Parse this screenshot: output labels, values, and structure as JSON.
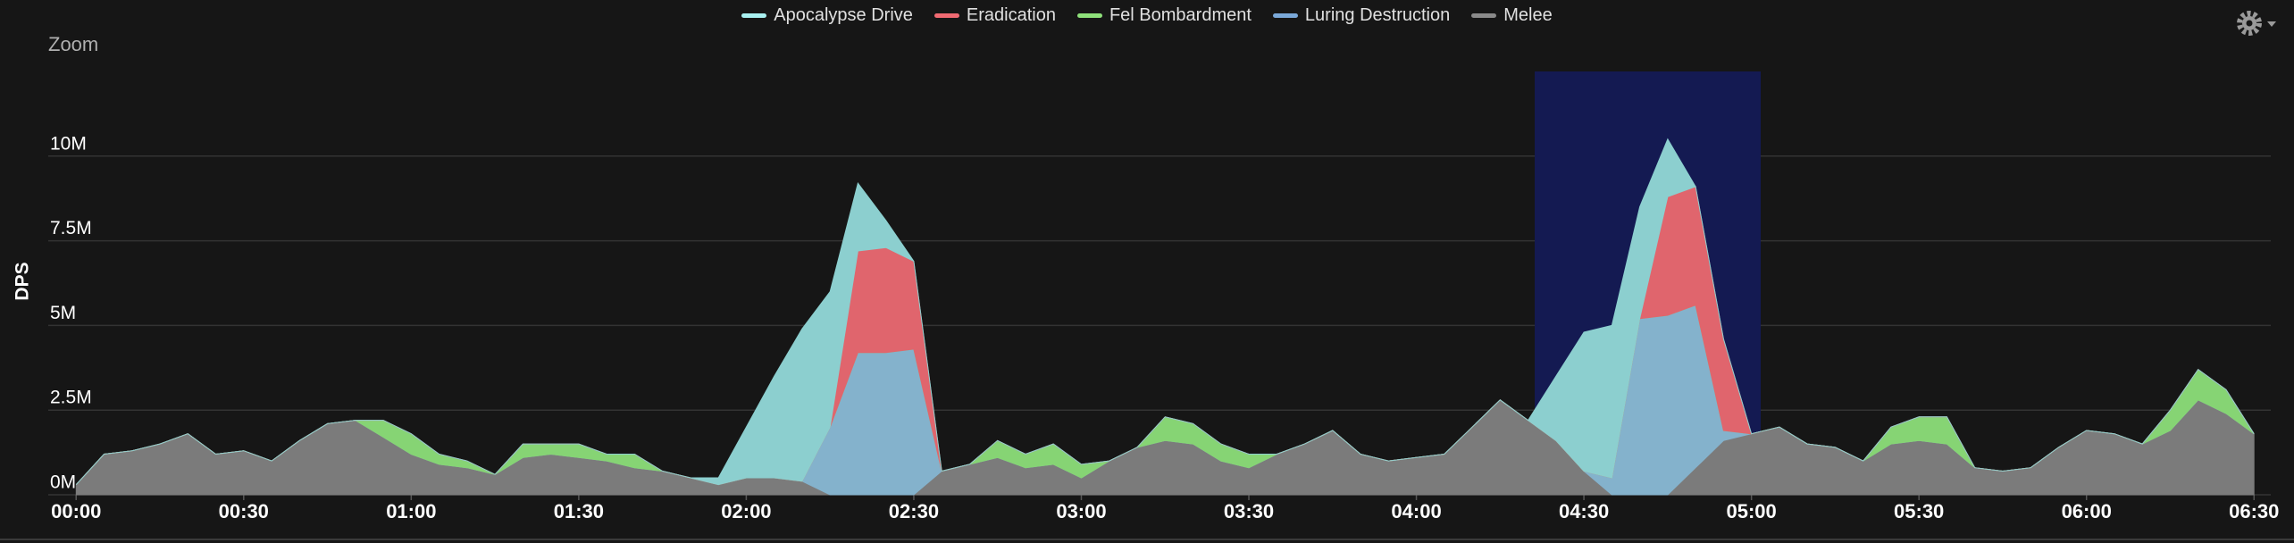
{
  "zoom_button": "Zoom",
  "chart_data": {
    "type": "area",
    "stacked": true,
    "y_label": "DPS",
    "grid": true,
    "x": [
      0,
      5,
      10,
      15,
      20,
      25,
      30,
      35,
      40,
      45,
      50,
      55,
      60,
      65,
      70,
      75,
      80,
      85,
      90,
      95,
      100,
      105,
      110,
      115,
      120,
      125,
      130,
      135,
      140,
      145,
      150,
      155,
      160,
      165,
      170,
      175,
      180,
      185,
      190,
      195,
      200,
      205,
      210,
      215,
      220,
      225,
      230,
      235,
      240,
      245,
      250,
      255,
      260,
      265,
      270,
      275,
      280,
      285,
      290,
      295,
      300,
      305,
      310,
      315,
      320,
      325,
      330,
      335,
      340,
      345,
      350,
      355,
      360,
      365,
      370,
      375,
      380,
      385,
      390
    ],
    "xlim": [
      -5,
      393
    ],
    "xticks": [
      {
        "value": 0,
        "label": "00:00"
      },
      {
        "value": 30,
        "label": "00:30"
      },
      {
        "value": 60,
        "label": "01:00"
      },
      {
        "value": 90,
        "label": "01:30"
      },
      {
        "value": 120,
        "label": "02:00"
      },
      {
        "value": 150,
        "label": "02:30"
      },
      {
        "value": 180,
        "label": "03:00"
      },
      {
        "value": 210,
        "label": "03:30"
      },
      {
        "value": 240,
        "label": "04:00"
      },
      {
        "value": 270,
        "label": "04:30"
      },
      {
        "value": 300,
        "label": "05:00"
      },
      {
        "value": 330,
        "label": "05:30"
      },
      {
        "value": 360,
        "label": "06:00"
      },
      {
        "value": 390,
        "label": "06:30"
      }
    ],
    "ylim": [
      0,
      12500000
    ],
    "yticks": [
      {
        "value": 0,
        "label": "0M"
      },
      {
        "value": 2500000,
        "label": "2.5M"
      },
      {
        "value": 5000000,
        "label": "5M"
      },
      {
        "value": 7500000,
        "label": "7.5M"
      },
      {
        "value": 10000000,
        "label": "10M"
      }
    ],
    "series": [
      {
        "name": "Apocalypse Drive",
        "color": "#8ccfcf",
        "line_color": "#a8f0f0",
        "values": [
          0,
          0,
          0,
          0,
          0,
          0,
          0,
          0,
          0,
          0,
          0,
          0,
          0,
          0,
          0,
          0,
          0,
          0,
          0,
          0,
          0,
          0,
          0,
          200000,
          1500000,
          3000000,
          4500000,
          4000000,
          2000000,
          800000,
          0,
          0,
          0,
          0,
          0,
          0,
          0,
          0,
          0,
          0,
          0,
          0,
          0,
          0,
          0,
          0,
          0,
          0,
          0,
          0,
          0,
          0,
          0,
          1900000,
          4100000,
          4500000,
          3300000,
          1700000,
          0,
          0,
          0,
          0,
          0,
          0,
          0,
          0,
          0,
          0,
          0,
          0,
          0,
          0,
          0,
          0,
          0,
          0,
          0,
          0,
          0
        ]
      },
      {
        "name": "Eradication",
        "color": "#e0656d",
        "line_color": "#f06a72",
        "values": [
          0,
          0,
          0,
          0,
          0,
          0,
          0,
          0,
          0,
          0,
          0,
          0,
          0,
          0,
          0,
          0,
          0,
          0,
          0,
          0,
          0,
          0,
          0,
          0,
          0,
          0,
          0,
          0,
          3000000,
          3100000,
          2600000,
          0,
          0,
          0,
          0,
          0,
          0,
          0,
          0,
          0,
          0,
          0,
          0,
          0,
          0,
          0,
          0,
          0,
          0,
          0,
          0,
          0,
          0,
          0,
          0,
          0,
          0,
          3500000,
          3500000,
          2700000,
          0,
          0,
          0,
          0,
          0,
          0,
          0,
          0,
          0,
          0,
          0,
          0,
          0,
          0,
          0,
          0,
          0,
          0,
          0
        ]
      },
      {
        "name": "Fel Bombardment",
        "color": "#86d474",
        "line_color": "#8ee07a",
        "values": [
          0,
          0,
          0,
          0,
          0,
          0,
          0,
          0,
          0,
          0,
          0,
          500000,
          600000,
          300000,
          200000,
          0,
          400000,
          300000,
          400000,
          200000,
          400000,
          0,
          0,
          0,
          0,
          0,
          0,
          0,
          0,
          0,
          0,
          0,
          0,
          500000,
          400000,
          600000,
          400000,
          0,
          0,
          700000,
          600000,
          500000,
          400000,
          0,
          0,
          0,
          0,
          0,
          0,
          0,
          0,
          0,
          0,
          0,
          0,
          0,
          0,
          0,
          0,
          0,
          0,
          0,
          0,
          0,
          0,
          500000,
          700000,
          800000,
          0,
          0,
          0,
          0,
          0,
          0,
          0,
          600000,
          900000,
          700000,
          0
        ]
      },
      {
        "name": "Luring Destruction",
        "color": "#84b2cc",
        "line_color": "#7aa8d8",
        "values": [
          0,
          0,
          0,
          0,
          0,
          0,
          0,
          0,
          0,
          0,
          0,
          0,
          0,
          0,
          0,
          0,
          0,
          0,
          0,
          0,
          0,
          0,
          0,
          0,
          0,
          0,
          0,
          2000000,
          4200000,
          4200000,
          4300000,
          0,
          0,
          0,
          0,
          0,
          0,
          0,
          0,
          0,
          0,
          0,
          0,
          0,
          0,
          0,
          0,
          0,
          0,
          0,
          0,
          0,
          0,
          0,
          0,
          500000,
          5200000,
          5300000,
          4800000,
          300000,
          0,
          0,
          0,
          0,
          0,
          0,
          0,
          0,
          0,
          0,
          0,
          0,
          0,
          0,
          0,
          0,
          0,
          0,
          0
        ]
      },
      {
        "name": "Melee",
        "color": "#7b7b7b",
        "line_color": "#8a8a8a",
        "values": [
          300000,
          1200000,
          1300000,
          1500000,
          1800000,
          1200000,
          1300000,
          1000000,
          1600000,
          2100000,
          2200000,
          1700000,
          1200000,
          900000,
          800000,
          600000,
          1100000,
          1200000,
          1100000,
          1000000,
          800000,
          700000,
          500000,
          300000,
          500000,
          500000,
          400000,
          0,
          0,
          0,
          0,
          700000,
          900000,
          1100000,
          800000,
          900000,
          500000,
          1000000,
          1400000,
          1600000,
          1500000,
          1000000,
          800000,
          1200000,
          1500000,
          1900000,
          1200000,
          1000000,
          1100000,
          1200000,
          2000000,
          2800000,
          2200000,
          1600000,
          700000,
          0,
          0,
          0,
          800000,
          1600000,
          1800000,
          2000000,
          1500000,
          1400000,
          1000000,
          1500000,
          1600000,
          1500000,
          800000,
          700000,
          800000,
          1400000,
          1900000,
          1800000,
          1500000,
          1900000,
          2800000,
          2400000,
          1800000
        ]
      }
    ]
  }
}
